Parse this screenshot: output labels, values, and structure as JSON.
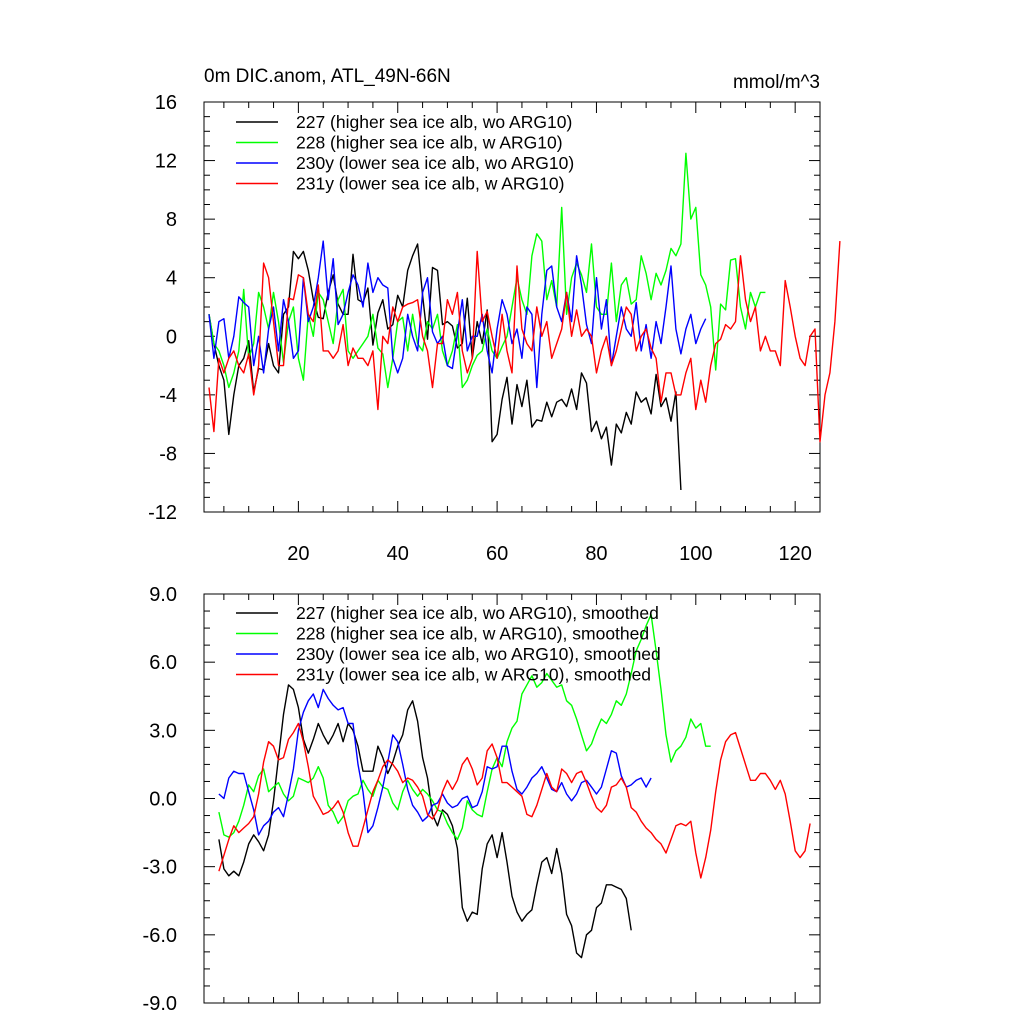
{
  "chart_data": [
    {
      "type": "line",
      "title": "0m DIC.anom, ATL_49N-66N",
      "units": "mmol/m^3",
      "xlabel": "",
      "ylabel": "",
      "xlim": [
        1,
        125
      ],
      "ylim": [
        -12,
        16
      ],
      "xticks": [
        20,
        40,
        60,
        80,
        100,
        120
      ],
      "xtick_labels": [
        "20",
        "40",
        "60",
        "80",
        "100",
        "120"
      ],
      "yticks": [
        -12,
        -8,
        -4,
        0,
        4,
        8,
        12,
        16
      ],
      "ytick_labels": [
        "-12",
        "-8",
        "-4",
        "0",
        "4",
        "8",
        "12",
        "16"
      ],
      "legend_position": "top-left",
      "series": [
        {
          "name": "227 (higher sea ice alb, wo ARG10)",
          "color": "#000000",
          "x_start": 2,
          "values": [
            1.5,
            -0.5,
            -2,
            -3,
            -6.7,
            -4,
            -2,
            -1.5,
            -0.3,
            -3.8,
            -2.2,
            -2.3,
            -0.5,
            -2,
            -2.5,
            1.5,
            2,
            5.8,
            5.3,
            5.8,
            4.5,
            2.5,
            1.3,
            1.2,
            3,
            4.2,
            2.2,
            1.5,
            1.5,
            5.6,
            2.5,
            2.3,
            3.3,
            -0.6,
            1.6,
            2.5,
            0.5,
            0.8,
            2.8,
            2,
            4.5,
            5.5,
            6.3,
            2.8,
            -0.2,
            4.7,
            4.5,
            0.8,
            1,
            0.7,
            -0.8,
            -0.5,
            2.6,
            -1.5,
            1,
            -0.5,
            1.8,
            -7.2,
            -6.7,
            -4.3,
            -2.8,
            -6,
            -3.3,
            -4.8,
            -3,
            -6.2,
            -5.7,
            -5.8,
            -4.5,
            -5.5,
            -4.5,
            -4.3,
            -4.8,
            -3.6,
            -5,
            -2.5,
            -3.2,
            -6.5,
            -5.8,
            -7,
            -6.2,
            -8.8,
            -6,
            -6.6,
            -5.2,
            -6,
            -3.8,
            -4.5,
            -4.2,
            -5.3,
            -2.6,
            -4.8,
            -4.2,
            -5.8,
            -3.8,
            -10.5
          ]
        },
        {
          "name": "228 (higher sea ice alb, w ARG10)",
          "color": "#00ff00",
          "x_start": 2,
          "values": [
            1.5,
            -0.5,
            -1,
            -2,
            -3.5,
            -2.5,
            -1,
            3.2,
            -1.5,
            -0.5,
            3,
            2,
            0.5,
            3,
            1,
            -1.8,
            1,
            2,
            -1.5,
            -3,
            1.5,
            0,
            3,
            2.5,
            1,
            -0.5,
            2.5,
            3.2,
            -1,
            -1.5,
            -1,
            -0.5,
            0,
            1.5,
            -0.8,
            -1.2,
            -3.5,
            -1.5,
            1,
            1.3,
            -1,
            1.5,
            -0.5,
            -1,
            1,
            0.5,
            1.5,
            -1,
            -2,
            -1,
            0.8,
            -3.5,
            -3,
            -2,
            -1.3,
            -1,
            0.5,
            -1,
            -1.5,
            -0.7,
            0,
            2,
            4,
            2.5,
            1.5,
            5.5,
            7,
            6.5,
            2.5,
            3.8,
            2,
            8.8,
            1.5,
            4,
            5,
            4.2,
            3,
            6.3,
            2,
            1.5,
            1.5,
            5,
            1,
            3.5,
            4,
            2.2,
            2.5,
            5.5,
            4.3,
            2.5,
            4.3,
            3.5,
            4.5,
            6,
            5.5,
            6.3,
            12.5,
            8,
            8.8,
            4.2,
            3.5,
            2,
            -2.3,
            2.2,
            1.8,
            5.2,
            5.3,
            2,
            0.5,
            3,
            2,
            3,
            3
          ]
        },
        {
          "name": "230y (lower sea ice alb, wo ARG10)",
          "color": "#0000ff",
          "x_start": 2,
          "values": [
            1.5,
            -1.5,
            1,
            1.2,
            -1.5,
            0,
            2.7,
            2.3,
            2,
            -2,
            0,
            -2.5,
            0.5,
            2,
            -1,
            2.5,
            1,
            -1.5,
            -1,
            4,
            1,
            2,
            4,
            6.5,
            2.5,
            5.3,
            0.8,
            1.5,
            3,
            4.2,
            3.5,
            2,
            5,
            3,
            4,
            3.5,
            3.3,
            -1.5,
            -2.5,
            -1.5,
            1.5,
            0,
            -1,
            3,
            4,
            0.3,
            -0.5,
            0,
            -2,
            -2.2,
            0.2,
            2.5,
            -1,
            0,
            0,
            1.5,
            -1,
            -2.5,
            0.5,
            2.5,
            1.5,
            -0.5,
            0.5,
            -1.5,
            2,
            1.5,
            -3.5,
            1.5,
            4.5,
            4.8,
            2,
            1,
            3,
            1,
            5.5,
            3.5,
            0.8,
            -0.5,
            4,
            0.5,
            2.5,
            -2,
            0,
            2,
            0.5,
            0,
            2.3,
            -1,
            0.8,
            -1.5,
            1,
            -0.5,
            2,
            4.8,
            0.5,
            -1.2,
            0.5,
            1.5,
            -0.5,
            0.5,
            1.2
          ]
        },
        {
          "name": "231y (lower sea ice alb, w ARG10)",
          "color": "#ff0000",
          "x_start": 2,
          "values": [
            -3.5,
            -6.5,
            -1.5,
            -2.5,
            -1.5,
            -1,
            -2,
            -2.5,
            -1.2,
            -4,
            -2,
            5,
            4,
            1,
            -2,
            -2,
            2.6,
            2.5,
            4.2,
            4,
            1.5,
            1,
            3.5,
            -1,
            -1,
            -1.5,
            -1,
            0.8,
            -2,
            -0.8,
            -1.5,
            -1.5,
            -2,
            -1,
            -5,
            0,
            -0.5,
            2,
            1,
            2,
            2.2,
            2.3,
            2.5,
            0,
            -1,
            -3.5,
            -0.5,
            -0.5,
            2.5,
            1.5,
            3,
            -1,
            -2.5,
            -1.5,
            5.8,
            1,
            1.7,
            0,
            -1.5,
            1.5,
            -1,
            -2.5,
            4.8,
            0.5,
            -0.5,
            -1,
            2,
            0,
            1,
            -1.5,
            -0.5,
            0.5,
            3,
            0,
            1.8,
            0,
            0.5,
            0,
            -2.5,
            -1,
            0,
            -2,
            -1,
            0.5,
            2,
            1.5,
            -1,
            0,
            0.5,
            -0.8,
            -1.5,
            -4.5,
            -2.5,
            -2.5,
            -4,
            -4,
            -2.5,
            -1.5,
            -5,
            -3,
            -4.5,
            -2,
            -0.5,
            -0.2,
            0.8,
            0.5,
            1,
            5.5,
            2.5,
            1,
            2,
            -1,
            0,
            -1,
            -1,
            -2,
            3.8,
            2,
            0,
            -1.5,
            -2,
            0,
            0.5,
            -7.2,
            -4,
            -2.5,
            1,
            6.5
          ]
        }
      ]
    },
    {
      "type": "line",
      "title": "",
      "xlabel": "",
      "ylabel": "",
      "xlim": [
        1,
        125
      ],
      "ylim": [
        -9,
        9
      ],
      "xticks": [
        20,
        40,
        60,
        80,
        100,
        120
      ],
      "yticks": [
        -9,
        -6,
        -3,
        0,
        3,
        6,
        9
      ],
      "ytick_labels": [
        "-9.0",
        "-6.0",
        "-3.0",
        "0.0",
        "3.0",
        "6.0",
        "9.0"
      ],
      "legend_position": "top-left",
      "series": [
        {
          "name": "227 (higher sea ice alb, wo ARG10), smoothed",
          "color": "#000000",
          "x_start": 4,
          "values": [
            -1.8,
            -3.1,
            -3.4,
            -3.2,
            -3.4,
            -2.8,
            -2,
            -1.6,
            -1.9,
            -2.3,
            -1.6,
            -0.1,
            1.8,
            3.7,
            5,
            4.8,
            4,
            2.6,
            2,
            2.6,
            3.3,
            2.8,
            2.4,
            2.8,
            3.3,
            2.5,
            3.3,
            3,
            2.3,
            1.2,
            1.2,
            1.2,
            2.3,
            1.8,
            1.1,
            1.6,
            2.3,
            2.8,
            3.9,
            4.3,
            3.4,
            1.8,
            0.9,
            -0.7,
            -1.2,
            -0.5,
            -0.7,
            -1.2,
            -2.2,
            -4.8,
            -5.4,
            -5,
            -5.1,
            -3.1,
            -2,
            -1.6,
            -2.6,
            -1.5,
            -2.8,
            -4.3,
            -5,
            -5.4,
            -5.1,
            -4.9,
            -3.8,
            -2.8,
            -2.6,
            -3.3,
            -2.2,
            -3.3,
            -5.1,
            -5.6,
            -6.8,
            -7,
            -6,
            -5.8,
            -4.8,
            -4.6,
            -3.8,
            -3.8,
            -3.9,
            -4,
            -4.4,
            -5.8
          ]
        },
        {
          "name": "228 (higher sea ice alb, w ARG10), smoothed",
          "color": "#00ff00",
          "x_start": 4,
          "values": [
            -0.6,
            -1.6,
            -1.7,
            -1.5,
            -1,
            -0.3,
            0.6,
            0.3,
            1,
            1.3,
            0.3,
            0.5,
            0.7,
            0.2,
            -0.1,
            0.1,
            0.9,
            0.8,
            0.7,
            0.9,
            1.4,
            0.9,
            -0.3,
            -0.6,
            -1.1,
            -0.8,
            -0.1,
            0.1,
            0.2,
            0.8,
            0.4,
            0.1,
            0.8,
            0.5,
            0.4,
            -0.2,
            -0.5,
            0.3,
            0.8,
            0.4,
            0.1,
            0.4,
            0.2,
            -0.1,
            -0.5,
            -0.6,
            -1.1,
            -1.5,
            -1.8,
            -1.3,
            -0.1,
            -0.5,
            -0.7,
            -0.8,
            0.3,
            1.3,
            1.8,
            1.4,
            2.5,
            3.1,
            3.4,
            4.6,
            5,
            5.4,
            4.9,
            5.1,
            5.5,
            5.2,
            4.9,
            5,
            4.3,
            4.1,
            3.5,
            2.8,
            2.1,
            2.4,
            3,
            3.5,
            3.3,
            3.7,
            4.3,
            4.1,
            4.6,
            5.5,
            6.5,
            7,
            7.6,
            8.1,
            6.5,
            4.8,
            2.8,
            1.6,
            2.1,
            2.3,
            2.7,
            3.5,
            3.1,
            3.3,
            2.3,
            2.3
          ]
        },
        {
          "name": "230y (lower sea ice alb, wo ARG10), smoothed",
          "color": "#0000ff",
          "x_start": 4,
          "values": [
            0.2,
            0,
            0.9,
            1.2,
            1.1,
            1.1,
            0.3,
            -0.5,
            -1.6,
            -1.2,
            -1,
            -0.6,
            -0.4,
            -0.8,
            0.2,
            1.3,
            3,
            3.8,
            4.3,
            4.6,
            4,
            4.8,
            4.4,
            4.1,
            3.9,
            4,
            3.3,
            3.3,
            1.5,
            0.3,
            -1.5,
            -1.2,
            -0.4,
            0.5,
            1.6,
            2.8,
            2.5,
            1.5,
            0.4,
            -0.3,
            -0.6,
            -1,
            -0.8,
            -0.3,
            -0.2,
            0.2,
            -0.2,
            -0.4,
            -0.3,
            0,
            0.1,
            -0.4,
            -0.3,
            0.3,
            1.4,
            1.3,
            1.4,
            2.3,
            2.3,
            1.2,
            0.4,
            0.2,
            0.5,
            0.9,
            1.1,
            1.4,
            0.9,
            0.4,
            0.3,
            0.7,
            0.2,
            -0.1,
            0.2,
            0.7,
            0.8,
            0.5,
            0.2,
            0.5,
            1.3,
            2.1,
            2,
            1,
            0.5,
            0.6,
            0.8,
            0.9,
            0.5,
            0.9
          ]
        },
        {
          "name": "231y (lower sea ice alb, w ARG10), smoothed",
          "color": "#ff0000",
          "x_start": 4,
          "values": [
            -3.2,
            -2.5,
            -1.8,
            -1.2,
            -1.5,
            -1.3,
            -1.1,
            -0.8,
            0.2,
            1.6,
            2.5,
            2.3,
            1.7,
            1.8,
            2.6,
            2.9,
            3.3,
            2.5,
            1.4,
            0.1,
            -0.3,
            -0.7,
            -0.6,
            -0.4,
            -0.1,
            -0.6,
            -1.5,
            -2.1,
            -2.1,
            -1.3,
            -0.5,
            0.3,
            0.8,
            1.4,
            1.7,
            1.5,
            1.2,
            0.7,
            0.9,
            0.8,
            0.5,
            0.1,
            -0.7,
            -0.9,
            -0.5,
            0.3,
            0.8,
            0.4,
            0.8,
            1.5,
            1.8,
            1.3,
            0.6,
            0.9,
            2.1,
            2.4,
            1.8,
            0.7,
            0.7,
            0.5,
            0.3,
            0.1,
            -0.7,
            -0.8,
            -0.3,
            0.4,
            1.1,
            0.5,
            0.3,
            1.3,
            1.1,
            0.7,
            1.1,
            1.2,
            0.7,
            0.1,
            -0.4,
            -0.6,
            -0.3,
            0.5,
            0.6,
            0.9,
            0.5,
            -0.4,
            -0.6,
            -1,
            -1.3,
            -1.5,
            -1.8,
            -2,
            -2.4,
            -1.8,
            -1.2,
            -1.1,
            -1.2,
            -1,
            -2.4,
            -3.5,
            -2.6,
            -1.4,
            0.3,
            1.7,
            2.5,
            2.8,
            2.9,
            2.2,
            1.5,
            0.8,
            0.8,
            1.1,
            1.1,
            0.8,
            0.4,
            0.8,
            0.2,
            -1,
            -2.3,
            -2.6,
            -2.3,
            -1.1
          ]
        }
      ]
    }
  ]
}
